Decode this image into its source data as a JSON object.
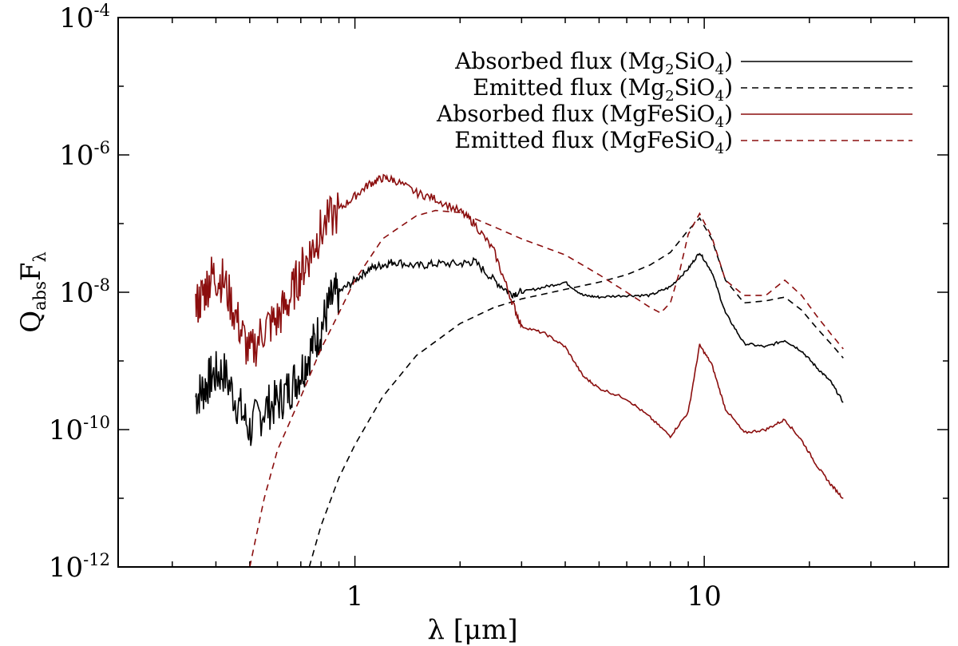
{
  "chart_data": {
    "type": "line",
    "title": "",
    "xscale": "log",
    "yscale": "log",
    "xlim": [
      0.21,
      50
    ],
    "ylim": [
      1e-12,
      0.0001
    ],
    "x_ticks_major": [
      1,
      10
    ],
    "x_tick_labels": [
      "1",
      "10"
    ],
    "y_ticks_major": [
      1e-12,
      1e-10,
      1e-08,
      1e-06,
      0.0001
    ],
    "y_tick_labels": [
      {
        "base": "10",
        "exp": "-12"
      },
      {
        "base": "10",
        "exp": "-10"
      },
      {
        "base": "10",
        "exp": "-8"
      },
      {
        "base": "10",
        "exp": "-6"
      },
      {
        "base": "10",
        "exp": "-4"
      }
    ],
    "xlabel": "λ [μm]",
    "ylabel": {
      "main": "Q",
      "sub1": "abs",
      "main2": "F",
      "sub2": "λ"
    },
    "legend_position": "top-right",
    "series": [
      {
        "name": "Absorbed flux (Mg2SiO4)",
        "label_parts": [
          "Absorbed flux (Mg",
          "2",
          "SiO",
          "4",
          ")"
        ],
        "color": "#000000",
        "dash": "solid",
        "x": [
          0.35,
          0.37,
          0.39,
          0.42,
          0.46,
          0.5,
          0.55,
          0.6,
          0.65,
          0.7,
          0.75,
          0.8,
          0.85,
          0.9,
          1.0,
          1.1,
          1.2,
          1.3,
          1.5,
          1.7,
          2.0,
          2.2,
          2.5,
          2.8,
          3.0,
          3.5,
          4.0,
          4.5,
          5.0,
          6.0,
          7.0,
          8.0,
          9.0,
          9.7,
          10.5,
          11.5,
          13.0,
          15.0,
          17.0,
          19.0,
          21.0,
          23.0,
          25.0
        ],
        "y": [
          3e-10,
          4e-10,
          6e-10,
          7e-10,
          2.5e-10,
          1e-10,
          2e-10,
          2.5e-10,
          4e-10,
          7e-10,
          1.5e-09,
          3e-09,
          7e-09,
          1e-08,
          1.5e-08,
          2.2e-08,
          2.5e-08,
          2.8e-08,
          2.4e-08,
          2.6e-08,
          2.6e-08,
          2.8e-08,
          1.5e-08,
          9.5e-09,
          1e-08,
          1.2e-08,
          1.4e-08,
          9e-09,
          8.5e-09,
          9e-09,
          9e-09,
          1.2e-08,
          2.2e-08,
          3.8e-08,
          2e-08,
          5e-09,
          1.8e-09,
          1.6e-09,
          2e-09,
          1.4e-09,
          8e-10,
          5e-10,
          2.5e-10
        ]
      },
      {
        "name": "Emitted flux (Mg2SiO4)",
        "label_parts": [
          "Emitted flux (Mg",
          "2",
          "SiO",
          "4",
          ")"
        ],
        "color": "#000000",
        "dash": "dashed",
        "x": [
          0.74,
          0.8,
          0.9,
          1.0,
          1.2,
          1.5,
          2.0,
          2.5,
          3.0,
          4.0,
          5.0,
          6.0,
          7.0,
          8.0,
          9.0,
          9.7,
          10.5,
          11.5,
          13.0,
          15.0,
          17.0,
          19.0,
          21.0,
          23.0,
          25.0
        ],
        "y": [
          1e-12,
          4e-12,
          2e-11,
          6e-11,
          3e-10,
          1.2e-09,
          3.5e-09,
          6e-09,
          8e-09,
          1.1e-08,
          1.4e-08,
          1.8e-08,
          2.5e-08,
          3.8e-08,
          8e-08,
          1.2e-07,
          6e-08,
          1.5e-08,
          7e-09,
          7.5e-09,
          8.5e-09,
          5.5e-09,
          3e-09,
          1.8e-09,
          1.1e-09
        ]
      },
      {
        "name": "Absorbed flux (MgFeSiO4)",
        "label_parts": [
          "Absorbed flux (MgFeSiO",
          "4",
          ")"
        ],
        "color": "#8b0e0e",
        "dash": "solid",
        "x": [
          0.35,
          0.37,
          0.39,
          0.42,
          0.46,
          0.5,
          0.55,
          0.6,
          0.65,
          0.7,
          0.75,
          0.8,
          0.9,
          1.0,
          1.1,
          1.2,
          1.3,
          1.5,
          1.7,
          2.0,
          2.2,
          2.5,
          2.8,
          3.0,
          3.5,
          4.0,
          4.5,
          5.0,
          6.0,
          7.0,
          8.0,
          9.0,
          9.7,
          10.5,
          11.5,
          13.0,
          15.0,
          17.0,
          19.0,
          21.0,
          23.0,
          25.0
        ],
        "y": [
          6e-09,
          1e-08,
          1.8e-08,
          1.5e-08,
          4e-09,
          1.2e-09,
          3e-09,
          4e-09,
          8e-09,
          2e-08,
          4e-08,
          8e-08,
          1.6e-07,
          2.5e-07,
          3.8e-07,
          4.6e-07,
          4.3e-07,
          2.8e-07,
          2.3e-07,
          1.5e-07,
          1e-07,
          4e-08,
          8e-09,
          3.2e-09,
          2.5e-09,
          1.6e-09,
          6e-10,
          4e-10,
          2.8e-10,
          1.5e-10,
          8e-11,
          1.8e-10,
          1.7e-09,
          9e-10,
          2e-10,
          9e-11,
          1e-10,
          1.4e-10,
          7e-11,
          3e-11,
          1.6e-11,
          1e-11
        ]
      },
      {
        "name": "Emitted flux (MgFeSiO4)",
        "label_parts": [
          "Emitted flux (MgFeSiO",
          "4",
          ")"
        ],
        "color": "#8b0e0e",
        "dash": "dashed",
        "x": [
          0.5,
          0.55,
          0.6,
          0.7,
          0.8,
          0.9,
          1.0,
          1.2,
          1.5,
          1.7,
          2.0,
          2.5,
          3.0,
          4.0,
          5.0,
          6.0,
          7.0,
          7.5,
          8.0,
          8.5,
          9.0,
          9.7,
          10.5,
          11.5,
          13.0,
          15.0,
          17.0,
          19.0,
          21.0,
          23.0,
          25.0
        ],
        "y": [
          1e-12,
          1e-11,
          5e-11,
          3e-10,
          1.5e-09,
          5e-09,
          1.5e-08,
          6e-08,
          1.3e-07,
          1.55e-07,
          1.45e-07,
          9e-08,
          6e-08,
          3.5e-08,
          1.8e-08,
          1e-08,
          6e-09,
          5e-09,
          7e-09,
          2e-08,
          7e-08,
          1.4e-07,
          6.5e-08,
          1.5e-08,
          9e-09,
          9e-09,
          1.5e-08,
          9e-09,
          4.5e-09,
          2.5e-09,
          1.5e-09
        ]
      }
    ]
  }
}
